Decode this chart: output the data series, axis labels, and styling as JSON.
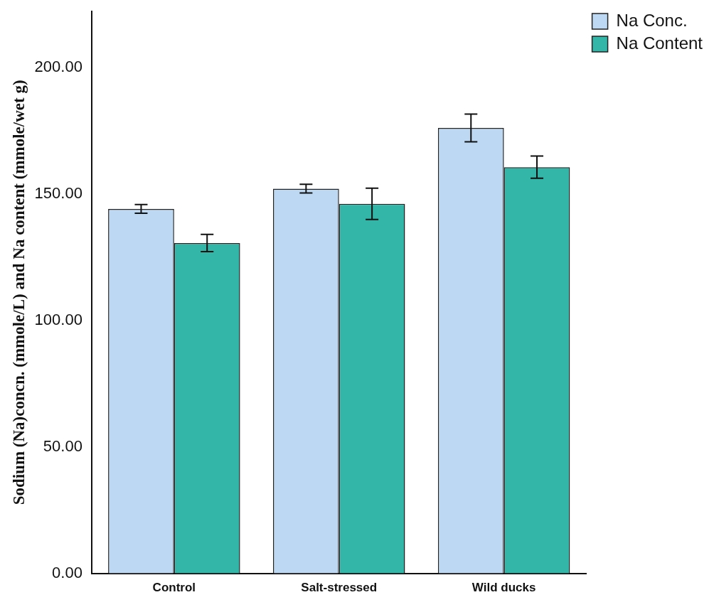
{
  "chart_data": {
    "type": "bar",
    "ylabel": "Sodium (Na)concn. (mmole/L) and Na content (mmole/wet g)",
    "categories": [
      "Control",
      "Salt-stressed",
      "Wild ducks"
    ],
    "series": [
      {
        "name": "Na Conc.",
        "color": "#bcd8f2",
        "values": [
          144,
          152,
          176
        ],
        "errors": [
          1.7,
          1.7,
          5.5
        ]
      },
      {
        "name": "Na Content",
        "color": "#33b5a8",
        "values": [
          130.5,
          146,
          160.5
        ],
        "errors": [
          3.4,
          6.2,
          4.4
        ]
      }
    ],
    "ylim": [
      0,
      222
    ],
    "yticks": [
      {
        "value": 0,
        "label": "0.00"
      },
      {
        "value": 50,
        "label": "50.00"
      },
      {
        "value": 100,
        "label": "100.00"
      },
      {
        "value": 150,
        "label": "150.00"
      },
      {
        "value": 200,
        "label": "200.00"
      }
    ],
    "grid": false,
    "legend": "top right"
  }
}
